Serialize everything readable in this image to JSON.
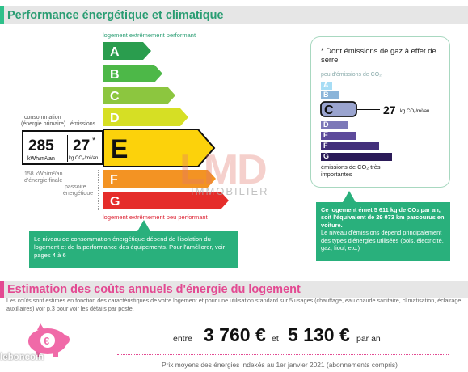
{
  "section1": {
    "title": "Performance énergétique et climatique"
  },
  "scale": {
    "top_label": "logement extrêmement performant",
    "bottom_label": "logement extrêmement peu performant",
    "classes": [
      "A",
      "B",
      "C",
      "D",
      "E",
      "F",
      "G"
    ],
    "active_class": "E",
    "colors": {
      "A": "#2a9d4e",
      "B": "#4db848",
      "C": "#8cc63f",
      "D": "#d6df24",
      "E": "#fcd20b",
      "F": "#f39323",
      "G": "#e52d2a"
    }
  },
  "consumption": {
    "label_consumption": "consommation",
    "label_primary": "(énergie primaire)",
    "label_emissions": "émissions",
    "energy_value": "285",
    "energy_unit": "kWh/m²/an",
    "ges_value": "27",
    "ges_star": "*",
    "ges_unit": "kg CO₂/m²/an",
    "final_energy": "158 kWh/m²/an",
    "final_energy_label": "d'énergie finale",
    "passoire_line1": "passoire",
    "passoire_line2": "énergétique"
  },
  "info_left": "Le niveau de consommation énergétique dépend de l'isolation du logement et de la performance des équipements. Pour l'améliorer, voir pages 4 à 6",
  "ges_panel": {
    "title": "* Dont émissions de gaz à effet de serre",
    "top_label": "peu d'émissions de CO₂",
    "bottom_label": "émissions de CO₂ très importantes",
    "classes": [
      "A",
      "B",
      "C",
      "D",
      "E",
      "F",
      "G"
    ],
    "active_class": "C",
    "value": "27",
    "unit": "kg CO₂/m²/an",
    "colors": {
      "A": "#a7ddf5",
      "B": "#8bb4d9",
      "C": "#9aa4cf",
      "D": "#7c78b8",
      "E": "#5d4a9b",
      "F": "#43307b",
      "G": "#2b1b58"
    }
  },
  "info_right": {
    "bold": "Ce logement émet 5 611 kg de CO₂ par an, soit l'équivalent de 29 073 km parcourus en voiture.",
    "normal": "Le niveau d'émissions dépend principalement des types d'énergies utilisées (bois, électricité, gaz, fioul, etc.)"
  },
  "watermark": {
    "main": "LMD",
    "sub": "IMMOBILIER"
  },
  "section2": {
    "title": "Estimation des coûts annuels d'énergie du logement"
  },
  "cost": {
    "description": "Les coûts sont estimés en fonction des caractéristiques de votre logement et pour une utilisation standard sur 5 usages (chauffage, eau chaude sanitaire, climatisation, éclairage, auxiliaires) voir p.3 pour voir les détails par poste.",
    "between": "entre",
    "low": "3 760 €",
    "and": "et",
    "high": "5 130 €",
    "per_year": "par an",
    "footnote": "Prix moyens des énergies indexés au 1er janvier 2021 (abonnements compris)"
  },
  "leboncoin": "leboncoin",
  "icons": {
    "piggy": "piggy-bank-euro-icon"
  }
}
